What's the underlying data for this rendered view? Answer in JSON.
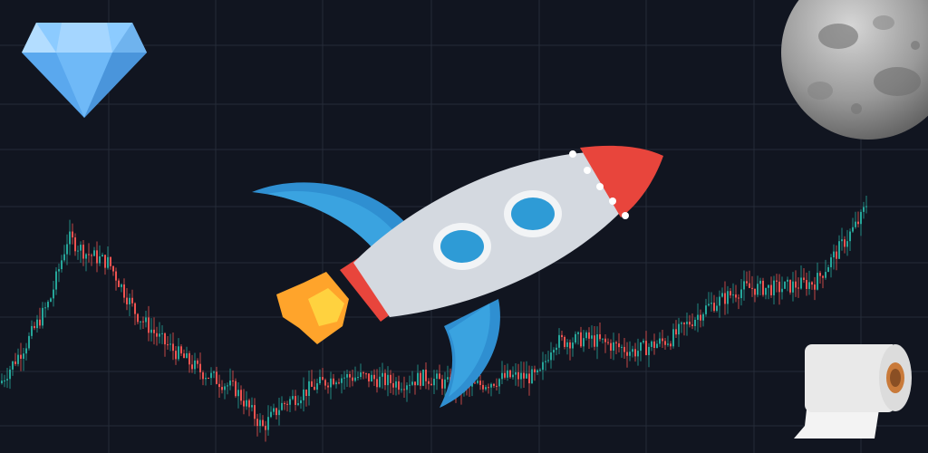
{
  "palette": {
    "background": "#111520",
    "grid": "#252b38",
    "candle_up": "#26a69a",
    "candle_down": "#ef5350"
  },
  "icons": [
    "diamond-icon",
    "moon-icon",
    "rocket-icon",
    "toilet-paper-icon"
  ],
  "chart_data": {
    "type": "candlestick",
    "title": "",
    "xlabel": "",
    "ylabel": "",
    "grid": true,
    "ylim": [
      0,
      100
    ],
    "trend": [
      [
        0,
        22
      ],
      [
        30,
        35
      ],
      [
        55,
        48
      ],
      [
        75,
        68
      ],
      [
        95,
        63
      ],
      [
        120,
        60
      ],
      [
        150,
        44
      ],
      [
        180,
        35
      ],
      [
        220,
        26
      ],
      [
        260,
        20
      ],
      [
        290,
        8
      ],
      [
        310,
        15
      ],
      [
        340,
        20
      ],
      [
        370,
        24
      ],
      [
        400,
        24
      ],
      [
        440,
        22
      ],
      [
        470,
        24
      ],
      [
        510,
        20
      ],
      [
        560,
        24
      ],
      [
        595,
        24
      ],
      [
        610,
        35
      ],
      [
        650,
        36
      ],
      [
        700,
        32
      ],
      [
        740,
        36
      ],
      [
        780,
        46
      ],
      [
        820,
        52
      ],
      [
        860,
        52
      ],
      [
        900,
        54
      ],
      [
        930,
        66
      ],
      [
        950,
        74
      ],
      [
        958,
        80
      ]
    ]
  }
}
